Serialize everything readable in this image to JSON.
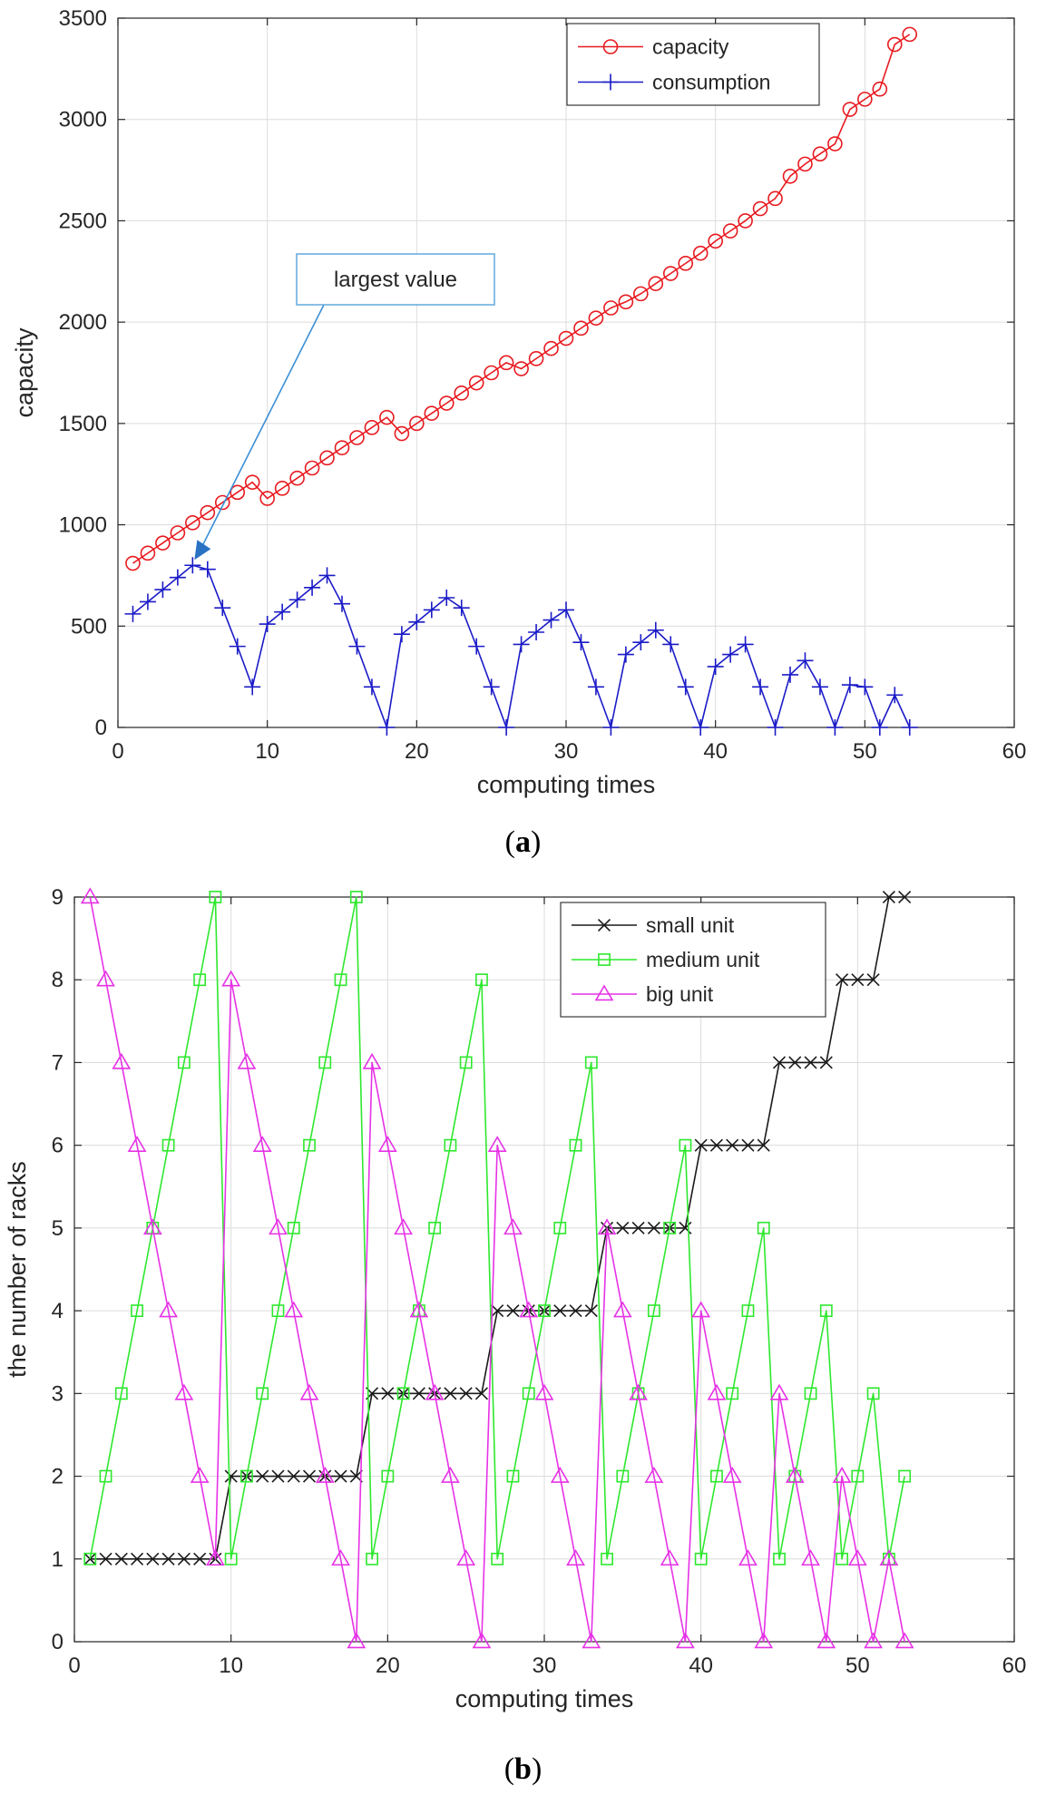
{
  "chart_data": [
    {
      "type": "line",
      "panel_label": "a",
      "xlabel": "computing times",
      "ylabel": "capacity",
      "xlim": [
        0,
        60
      ],
      "ylim": [
        0,
        3500
      ],
      "xticks": [
        0,
        10,
        20,
        30,
        40,
        50,
        60
      ],
      "yticks": [
        0,
        500,
        1000,
        1500,
        2000,
        2500,
        3000,
        3500
      ],
      "grid": true,
      "legend_position": "top-right",
      "series": [
        {
          "name": "capacity",
          "color": "#e8191f",
          "marker": "circle",
          "x": [
            1,
            2,
            3,
            4,
            5,
            6,
            7,
            8,
            9,
            10,
            11,
            12,
            13,
            14,
            15,
            16,
            17,
            18,
            19,
            20,
            21,
            22,
            23,
            24,
            25,
            26,
            27,
            28,
            29,
            30,
            31,
            32,
            33,
            34,
            35,
            36,
            37,
            38,
            39,
            40,
            41,
            42,
            43,
            44,
            45,
            46,
            47,
            48,
            49,
            50,
            51,
            52,
            53
          ],
          "values": [
            810,
            860,
            910,
            960,
            1010,
            1060,
            1110,
            1160,
            1210,
            1130,
            1180,
            1230,
            1280,
            1330,
            1380,
            1430,
            1480,
            1530,
            1450,
            1500,
            1550,
            1600,
            1650,
            1700,
            1750,
            1800,
            1770,
            1820,
            1870,
            1920,
            1970,
            2020,
            2070,
            2100,
            2140,
            2190,
            2240,
            2290,
            2340,
            2400,
            2450,
            2500,
            2560,
            2610,
            2720,
            2780,
            2830,
            2880,
            3050,
            3100,
            3150,
            3370,
            3420
          ]
        },
        {
          "name": "consumption",
          "color": "#1b1bc8",
          "marker": "plus",
          "x": [
            1,
            2,
            3,
            4,
            5,
            6,
            7,
            8,
            9,
            10,
            11,
            12,
            13,
            14,
            15,
            16,
            17,
            18,
            19,
            20,
            21,
            22,
            23,
            24,
            25,
            26,
            27,
            28,
            29,
            30,
            31,
            32,
            33,
            34,
            35,
            36,
            37,
            38,
            39,
            40,
            41,
            42,
            43,
            44,
            45,
            46,
            47,
            48,
            49,
            50,
            51,
            52,
            53
          ],
          "values": [
            560,
            620,
            680,
            740,
            800,
            780,
            590,
            400,
            200,
            510,
            570,
            630,
            690,
            750,
            610,
            400,
            200,
            0,
            460,
            520,
            580,
            640,
            590,
            400,
            200,
            0,
            410,
            470,
            530,
            580,
            420,
            200,
            0,
            360,
            420,
            480,
            410,
            200,
            0,
            300,
            360,
            410,
            200,
            0,
            260,
            330,
            200,
            0,
            210,
            200,
            0,
            160,
            0
          ]
        }
      ],
      "annotation": {
        "text": "largest value",
        "target_x": 5,
        "target_y": 800
      }
    },
    {
      "type": "line",
      "panel_label": "b",
      "xlabel": "computing times",
      "ylabel": "the number of racks",
      "xlim": [
        0,
        60
      ],
      "ylim": [
        0,
        9
      ],
      "xticks": [
        0,
        10,
        20,
        30,
        40,
        50,
        60
      ],
      "yticks": [
        0,
        1,
        2,
        3,
        4,
        5,
        6,
        7,
        8,
        9
      ],
      "grid": true,
      "legend_position": "top-right",
      "series": [
        {
          "name": "small unit",
          "color": "#1a1a1a",
          "marker": "x",
          "x": [
            1,
            2,
            3,
            4,
            5,
            6,
            7,
            8,
            9,
            10,
            11,
            12,
            13,
            14,
            15,
            16,
            17,
            18,
            19,
            20,
            21,
            22,
            23,
            24,
            25,
            26,
            27,
            28,
            29,
            30,
            31,
            32,
            33,
            34,
            35,
            36,
            37,
            38,
            39,
            40,
            41,
            42,
            43,
            44,
            45,
            46,
            47,
            48,
            49,
            50,
            51,
            52,
            53
          ],
          "values": [
            1,
            1,
            1,
            1,
            1,
            1,
            1,
            1,
            1,
            2,
            2,
            2,
            2,
            2,
            2,
            2,
            2,
            2,
            3,
            3,
            3,
            3,
            3,
            3,
            3,
            3,
            4,
            4,
            4,
            4,
            4,
            4,
            4,
            5,
            5,
            5,
            5,
            5,
            5,
            6,
            6,
            6,
            6,
            6,
            7,
            7,
            7,
            7,
            8,
            8,
            8,
            9,
            9
          ]
        },
        {
          "name": "medium unit",
          "color": "#2ee82e",
          "marker": "square",
          "x": [
            1,
            2,
            3,
            4,
            5,
            6,
            7,
            8,
            9,
            10,
            11,
            12,
            13,
            14,
            15,
            16,
            17,
            18,
            19,
            20,
            21,
            22,
            23,
            24,
            25,
            26,
            27,
            28,
            29,
            30,
            31,
            32,
            33,
            34,
            35,
            36,
            37,
            38,
            39,
            40,
            41,
            42,
            43,
            44,
            45,
            46,
            47,
            48,
            49,
            50,
            51,
            52,
            53
          ],
          "values": [
            1,
            2,
            3,
            4,
            5,
            6,
            7,
            8,
            9,
            1,
            2,
            3,
            4,
            5,
            6,
            7,
            8,
            9,
            1,
            2,
            3,
            4,
            5,
            6,
            7,
            8,
            1,
            2,
            3,
            4,
            5,
            6,
            7,
            1,
            2,
            3,
            4,
            5,
            6,
            1,
            2,
            3,
            4,
            5,
            1,
            2,
            3,
            4,
            1,
            2,
            3,
            1,
            2
          ]
        },
        {
          "name": "big unit",
          "color": "#e632e6",
          "marker": "triangle",
          "x": [
            1,
            2,
            3,
            4,
            5,
            6,
            7,
            8,
            9,
            10,
            11,
            12,
            13,
            14,
            15,
            16,
            17,
            18,
            19,
            20,
            21,
            22,
            23,
            24,
            25,
            26,
            27,
            28,
            29,
            30,
            31,
            32,
            33,
            34,
            35,
            36,
            37,
            38,
            39,
            40,
            41,
            42,
            43,
            44,
            45,
            46,
            47,
            48,
            49,
            50,
            51,
            52,
            53
          ],
          "values": [
            9,
            8,
            7,
            6,
            5,
            4,
            3,
            2,
            1,
            8,
            7,
            6,
            5,
            4,
            3,
            2,
            1,
            0,
            7,
            6,
            5,
            4,
            3,
            2,
            1,
            0,
            6,
            5,
            4,
            3,
            2,
            1,
            0,
            5,
            4,
            3,
            2,
            1,
            0,
            4,
            3,
            2,
            1,
            0,
            3,
            2,
            1,
            0,
            2,
            1,
            0,
            1,
            0
          ]
        }
      ]
    }
  ]
}
